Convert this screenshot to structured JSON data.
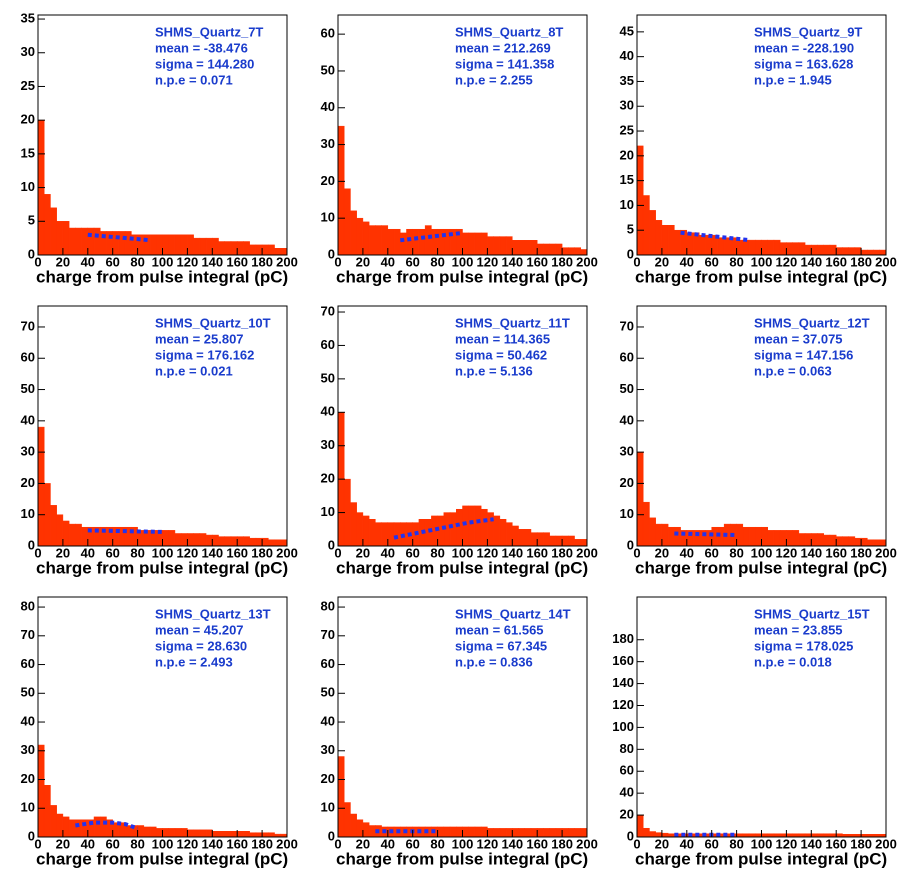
{
  "chart_data": [
    {
      "type": "histogram",
      "title": "SHMS_Quartz_7T",
      "annotations": [
        "mean = -38.476",
        "sigma = 144.280",
        "n.p.e = 0.071"
      ],
      "xlabel": "charge from pulse integral (pC)",
      "bins": [
        0,
        5,
        10,
        15,
        20,
        25,
        30,
        35,
        40,
        45,
        50,
        55,
        60,
        65,
        70,
        75,
        80,
        85,
        90,
        95,
        100,
        105,
        110,
        115,
        120,
        125,
        130,
        135,
        140,
        145,
        150,
        155,
        160,
        165,
        170,
        175,
        180,
        185,
        190,
        195,
        200
      ],
      "counts": [
        20,
        9,
        7,
        5,
        5,
        4,
        4,
        4,
        4,
        4,
        3.5,
        3.5,
        3.5,
        3.5,
        3.5,
        3,
        3,
        3,
        3,
        3,
        3,
        3,
        3,
        3,
        3,
        2.5,
        2.5,
        2.5,
        2.5,
        2,
        2,
        2,
        2,
        2,
        1.5,
        1.5,
        1.5,
        1.5,
        1,
        1
      ],
      "color": "#ff3300",
      "fit": {
        "x": [
          40,
          90
        ],
        "values": [
          3,
          2.2
        ],
        "color": "#2233ee"
      },
      "xlim": [
        0,
        200
      ],
      "xticks": [
        0,
        20,
        40,
        60,
        80,
        100,
        120,
        140,
        160,
        180,
        200
      ],
      "ylim": [
        0,
        35.6
      ],
      "yticks": [
        0,
        5,
        10,
        15,
        20,
        25,
        30,
        35
      ]
    },
    {
      "type": "histogram",
      "title": "SHMS_Quartz_8T",
      "annotations": [
        "mean = 212.269",
        "sigma = 141.358",
        "n.p.e = 2.255"
      ],
      "xlabel": "charge from pulse integral (pC)",
      "bins": [
        0,
        5,
        10,
        15,
        20,
        25,
        30,
        35,
        40,
        45,
        50,
        55,
        60,
        65,
        70,
        75,
        80,
        85,
        90,
        95,
        100,
        105,
        110,
        115,
        120,
        125,
        130,
        135,
        140,
        145,
        150,
        155,
        160,
        165,
        170,
        175,
        180,
        185,
        190,
        195,
        200
      ],
      "counts": [
        35,
        18,
        12,
        10,
        9,
        8,
        8,
        8,
        7,
        7,
        6,
        7,
        7,
        7,
        8,
        7,
        7,
        7,
        7,
        7,
        6,
        6,
        6,
        6,
        5,
        5,
        5,
        5,
        4,
        4,
        4,
        4,
        3,
        3,
        3,
        3,
        2,
        2,
        2,
        1.5
      ],
      "color": "#ff3300",
      "fit": {
        "x": [
          50,
          100
        ],
        "values": [
          4,
          6
        ],
        "color": "#2233ee"
      },
      "xlim": [
        0,
        200
      ],
      "xticks": [
        0,
        20,
        40,
        60,
        80,
        100,
        120,
        140,
        160,
        180,
        200
      ],
      "ylim": [
        0,
        65.2
      ],
      "yticks": [
        0,
        10,
        20,
        30,
        40,
        50,
        60
      ]
    },
    {
      "type": "histogram",
      "title": "SHMS_Quartz_9T",
      "annotations": [
        "mean = -228.190",
        "sigma = 163.628",
        "n.p.e = 1.945"
      ],
      "xlabel": "charge from pulse integral (pC)",
      "bins": [
        0,
        5,
        10,
        15,
        20,
        25,
        30,
        35,
        40,
        45,
        50,
        55,
        60,
        65,
        70,
        75,
        80,
        85,
        90,
        95,
        100,
        105,
        110,
        115,
        120,
        125,
        130,
        135,
        140,
        145,
        150,
        155,
        160,
        165,
        170,
        175,
        180,
        185,
        190,
        195,
        200
      ],
      "counts": [
        22,
        12,
        9,
        7,
        6,
        6,
        5,
        5,
        4.5,
        4.5,
        4,
        4,
        4,
        3.5,
        3.5,
        3.5,
        3,
        3,
        3,
        3,
        3,
        3,
        3,
        2.5,
        2.5,
        2.5,
        2.5,
        2,
        2,
        2,
        2,
        2,
        1.5,
        1.5,
        1.5,
        1.5,
        1,
        1,
        1,
        1
      ],
      "color": "#ff3300",
      "fit": {
        "x": [
          35,
          90
        ],
        "values": [
          4.5,
          3
        ],
        "color": "#2233ee"
      },
      "xlim": [
        0,
        200
      ],
      "xticks": [
        0,
        20,
        40,
        60,
        80,
        100,
        120,
        140,
        160,
        180,
        200
      ],
      "ylim": [
        0,
        48.4
      ],
      "yticks": [
        0,
        5,
        10,
        15,
        20,
        25,
        30,
        35,
        40,
        45
      ]
    },
    {
      "type": "histogram",
      "title": "SHMS_Quartz_10T",
      "annotations": [
        "mean = 25.807",
        "sigma = 176.162",
        "n.p.e = 0.021"
      ],
      "xlabel": "charge from pulse integral (pC)",
      "bins": [
        0,
        5,
        10,
        15,
        20,
        25,
        30,
        35,
        40,
        45,
        50,
        55,
        60,
        65,
        70,
        75,
        80,
        85,
        90,
        95,
        100,
        105,
        110,
        115,
        120,
        125,
        130,
        135,
        140,
        145,
        150,
        155,
        160,
        165,
        170,
        175,
        180,
        185,
        190,
        195,
        200
      ],
      "counts": [
        38,
        20,
        13,
        10,
        8,
        7,
        7,
        6,
        6,
        6,
        6,
        6,
        6,
        6,
        6,
        6,
        5,
        5,
        5,
        5,
        5,
        5,
        4,
        4,
        4,
        4,
        4,
        3.5,
        3.5,
        3,
        3,
        3,
        3,
        3,
        2.5,
        2.5,
        2.5,
        2,
        2,
        2
      ],
      "color": "#ff3300",
      "fit": {
        "x": [
          40,
          100
        ],
        "values": [
          5,
          4.5
        ],
        "color": "#2233ee"
      },
      "xlim": [
        0,
        200
      ],
      "xticks": [
        0,
        20,
        40,
        60,
        80,
        100,
        120,
        140,
        160,
        180,
        200
      ],
      "ylim": [
        0,
        76.7
      ],
      "yticks": [
        0,
        10,
        20,
        30,
        40,
        50,
        60,
        70
      ]
    },
    {
      "type": "histogram",
      "title": "SHMS_Quartz_11T",
      "annotations": [
        "mean = 114.365",
        "sigma = 50.462",
        "n.p.e = 5.136"
      ],
      "xlabel": "charge from pulse integral (pC)",
      "bins": [
        0,
        5,
        10,
        15,
        20,
        25,
        30,
        35,
        40,
        45,
        50,
        55,
        60,
        65,
        70,
        75,
        80,
        85,
        90,
        95,
        100,
        105,
        110,
        115,
        120,
        125,
        130,
        135,
        140,
        145,
        150,
        155,
        160,
        165,
        170,
        175,
        180,
        185,
        190,
        195,
        200
      ],
      "counts": [
        40,
        20,
        13,
        10,
        9,
        8,
        7,
        7,
        7,
        7,
        7,
        7,
        7,
        8,
        8,
        9,
        9,
        10,
        10,
        11,
        12,
        12,
        12,
        11,
        10,
        9,
        8,
        7,
        6,
        5,
        5,
        4,
        4,
        4,
        3,
        3,
        3,
        3,
        2,
        2
      ],
      "color": "#ff3300",
      "fit": {
        "x": [
          45,
          65,
          85,
          105,
          125
        ],
        "values": [
          2.5,
          4,
          5.5,
          7,
          8
        ],
        "color": "#2233ee"
      },
      "xlim": [
        0,
        200
      ],
      "xticks": [
        0,
        20,
        40,
        60,
        80,
        100,
        120,
        140,
        160,
        180,
        200
      ],
      "ylim": [
        0,
        71.8
      ],
      "yticks": [
        0,
        10,
        20,
        30,
        40,
        50,
        60,
        70
      ]
    },
    {
      "type": "histogram",
      "title": "SHMS_Quartz_12T",
      "annotations": [
        "mean = 37.075",
        "sigma = 147.156",
        "n.p.e = 0.063"
      ],
      "xlabel": "charge from pulse integral (pC)",
      "bins": [
        0,
        5,
        10,
        15,
        20,
        25,
        30,
        35,
        40,
        45,
        50,
        55,
        60,
        65,
        70,
        75,
        80,
        85,
        90,
        95,
        100,
        105,
        110,
        115,
        120,
        125,
        130,
        135,
        140,
        145,
        150,
        155,
        160,
        165,
        170,
        175,
        180,
        185,
        190,
        195,
        200
      ],
      "counts": [
        30,
        14,
        9,
        7,
        7,
        6,
        6,
        5,
        5,
        5,
        5,
        5,
        6,
        6,
        7,
        7,
        7,
        6,
        6,
        6,
        6,
        5,
        5,
        5,
        5,
        5,
        4,
        4,
        4,
        4,
        3.5,
        3.5,
        3,
        3,
        3,
        2.5,
        2.5,
        2,
        2,
        2
      ],
      "color": "#ff3300",
      "fit": {
        "x": [
          30,
          80
        ],
        "values": [
          4,
          3.5
        ],
        "color": "#2233ee"
      },
      "xlim": [
        0,
        200
      ],
      "xticks": [
        0,
        20,
        40,
        60,
        80,
        100,
        120,
        140,
        160,
        180,
        200
      ],
      "ylim": [
        0,
        76.7
      ],
      "yticks": [
        0,
        10,
        20,
        30,
        40,
        50,
        60,
        70
      ]
    },
    {
      "type": "histogram",
      "title": "SHMS_Quartz_13T",
      "annotations": [
        "mean = 45.207",
        "sigma = 28.630",
        "n.p.e = 2.493"
      ],
      "xlabel": "charge from pulse integral (pC)",
      "bins": [
        0,
        5,
        10,
        15,
        20,
        25,
        30,
        35,
        40,
        45,
        50,
        55,
        60,
        65,
        70,
        75,
        80,
        85,
        90,
        95,
        100,
        105,
        110,
        115,
        120,
        125,
        130,
        135,
        140,
        145,
        150,
        155,
        160,
        165,
        170,
        175,
        180,
        185,
        190,
        195,
        200
      ],
      "counts": [
        32,
        18,
        11,
        8,
        7,
        6,
        6,
        6,
        6,
        7,
        7,
        6,
        5,
        5,
        4,
        4,
        4,
        3.5,
        3.5,
        3,
        3,
        3,
        3,
        3,
        2.5,
        2.5,
        2.5,
        2.5,
        2,
        2,
        2,
        2,
        2,
        2,
        1.5,
        1.5,
        1.5,
        1.5,
        1,
        1
      ],
      "color": "#ff3300",
      "fit": {
        "x": [
          30,
          45,
          60,
          70,
          80
        ],
        "values": [
          4,
          5,
          5,
          4.5,
          3
        ],
        "color": "#2233ee"
      },
      "xlim": [
        0,
        200
      ],
      "xticks": [
        0,
        20,
        40,
        60,
        80,
        100,
        120,
        140,
        160,
        180,
        200
      ],
      "ylim": [
        0,
        83.5
      ],
      "yticks": [
        0,
        10,
        20,
        30,
        40,
        50,
        60,
        70,
        80
      ]
    },
    {
      "type": "histogram",
      "title": "SHMS_Quartz_14T",
      "annotations": [
        "mean = 61.565",
        "sigma = 67.345",
        "n.p.e = 0.836"
      ],
      "xlabel": "charge from pulse integral (pC)",
      "bins": [
        0,
        5,
        10,
        15,
        20,
        25,
        30,
        35,
        40,
        45,
        50,
        55,
        60,
        65,
        70,
        75,
        80,
        85,
        90,
        95,
        100,
        105,
        110,
        115,
        120,
        125,
        130,
        135,
        140,
        145,
        150,
        155,
        160,
        165,
        170,
        175,
        180,
        185,
        190,
        195,
        200
      ],
      "counts": [
        28,
        12,
        8,
        6,
        5,
        4,
        4,
        3.5,
        3.5,
        3.5,
        3.5,
        3.5,
        3.5,
        3.5,
        3.5,
        3.5,
        3.5,
        3.5,
        3.5,
        3.5,
        3.5,
        3.5,
        3.5,
        3.5,
        3,
        3,
        3,
        3,
        3,
        3,
        3,
        3,
        3,
        3,
        3,
        3,
        3,
        3,
        3,
        3
      ],
      "color": "#ff3300",
      "fit": {
        "x": [
          30,
          80
        ],
        "values": [
          2,
          2
        ],
        "color": "#2233ee"
      },
      "xlim": [
        0,
        200
      ],
      "xticks": [
        0,
        20,
        40,
        60,
        80,
        100,
        120,
        140,
        160,
        180,
        200
      ],
      "ylim": [
        0,
        83.5
      ],
      "yticks": [
        0,
        10,
        20,
        30,
        40,
        50,
        60,
        70,
        80
      ]
    },
    {
      "type": "histogram",
      "title": "SHMS_Quartz_15T",
      "annotations": [
        "mean = 23.855",
        "sigma = 178.025",
        "n.p.e = 0.018"
      ],
      "xlabel": "charge from pulse integral (pC)",
      "bins": [
        0,
        5,
        10,
        15,
        20,
        25,
        30,
        35,
        40,
        45,
        50,
        55,
        60,
        65,
        70,
        75,
        80,
        85,
        90,
        95,
        100,
        105,
        110,
        115,
        120,
        125,
        130,
        135,
        140,
        145,
        150,
        155,
        160,
        165,
        170,
        175,
        180,
        185,
        190,
        195,
        200
      ],
      "counts": [
        20,
        8,
        5,
        4,
        3.5,
        3,
        3,
        3,
        3,
        3,
        3,
        3,
        3,
        3,
        3,
        3,
        3,
        3,
        3,
        3,
        3,
        3,
        3,
        3,
        3,
        3,
        3,
        3,
        3,
        3,
        3,
        3,
        3,
        2.5,
        2.5,
        2.5,
        2.5,
        2.5,
        2.5,
        2.5
      ],
      "color": "#ff3300",
      "fit": {
        "x": [
          30,
          80
        ],
        "values": [
          2,
          2
        ],
        "color": "#2233ee"
      },
      "xlim": [
        0,
        200
      ],
      "xticks": [
        0,
        20,
        40,
        60,
        80,
        100,
        120,
        140,
        160,
        180,
        200
      ],
      "ylim": [
        0,
        219
      ],
      "yticks": [
        0,
        20,
        40,
        60,
        80,
        100,
        120,
        140,
        160,
        180
      ]
    }
  ]
}
